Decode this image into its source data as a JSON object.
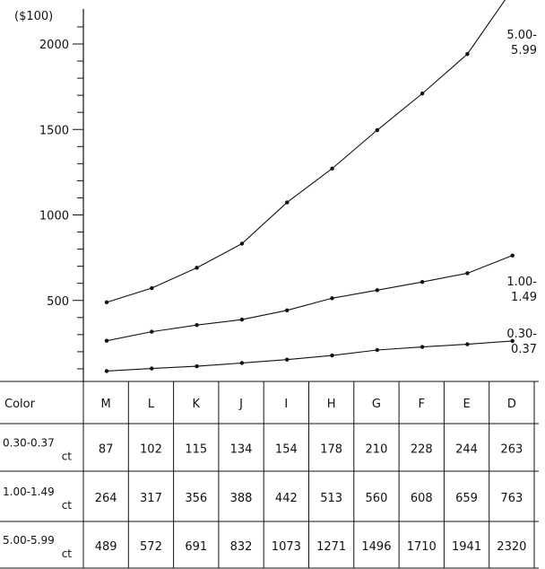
{
  "chart_data": {
    "type": "line",
    "y_unit_label": "($100)",
    "yticks": [
      500,
      1000,
      1500,
      2000
    ],
    "ylim": [
      0,
      2100
    ],
    "categories": [
      "M",
      "L",
      "K",
      "J",
      "I",
      "H",
      "G",
      "F",
      "E",
      "D"
    ],
    "row_header": "Color",
    "grid": false,
    "series": [
      {
        "name": "0.30-0.37 ct",
        "label_lines": [
          "0.30-",
          "0.37"
        ],
        "values": [
          87,
          102,
          115,
          134,
          154,
          178,
          210,
          228,
          244,
          263
        ]
      },
      {
        "name": "1.00-1.49 ct",
        "label_lines": [
          "1.00-",
          "1.49"
        ],
        "values": [
          264,
          317,
          356,
          388,
          442,
          513,
          560,
          608,
          659,
          763
        ]
      },
      {
        "name": "5.00-5.99 ct",
        "label_lines": [
          "5.00-",
          "5.99"
        ],
        "values": [
          489,
          572,
          691,
          832,
          1073,
          1271,
          1496,
          1710,
          1941,
          2320
        ]
      }
    ],
    "table_rows": [
      {
        "label_lines": [
          "0.30-0.37",
          "ct"
        ]
      },
      {
        "label_lines": [
          "1.00-1.49",
          "ct"
        ]
      },
      {
        "label_lines": [
          "5.00-5.99",
          "ct"
        ]
      }
    ],
    "colors": {
      "line": "#111111",
      "background": "#ffffff"
    }
  }
}
